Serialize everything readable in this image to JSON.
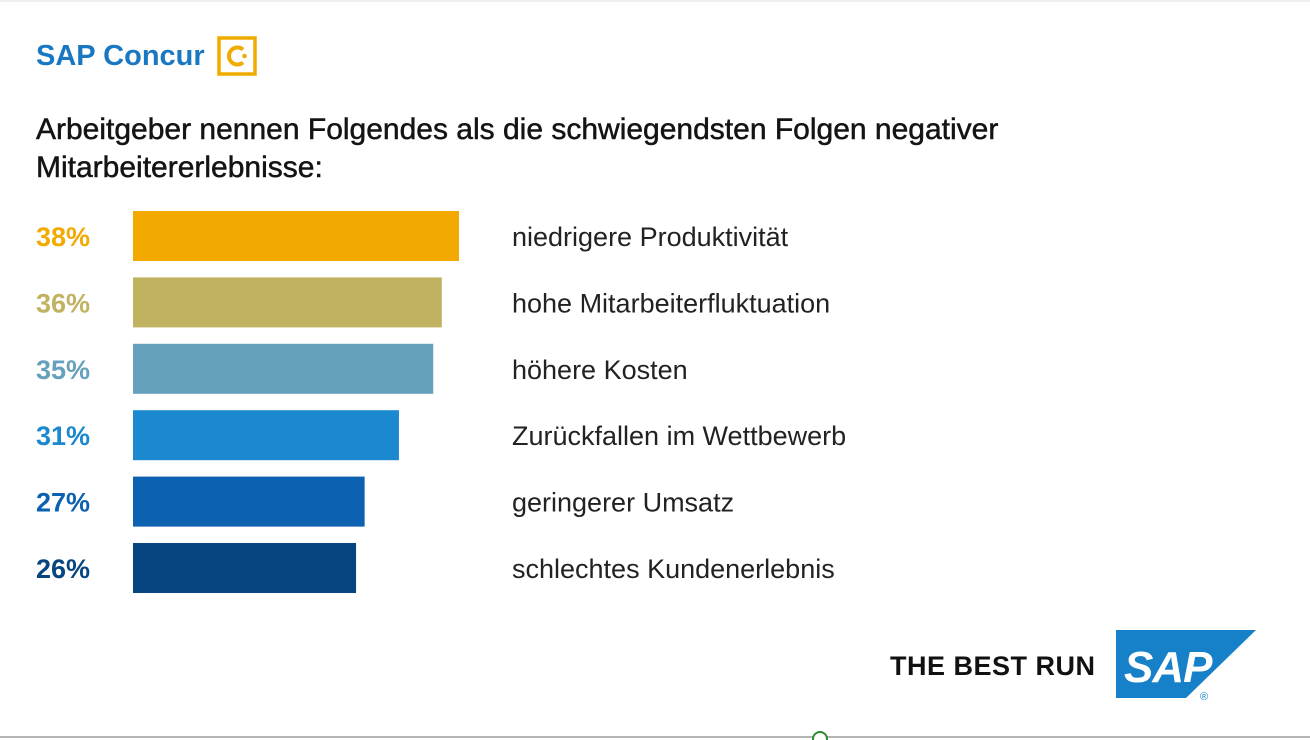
{
  "brand": {
    "name": "SAP Concur",
    "icon": "concur-c-icon",
    "name_color": "#1a78c2",
    "icon_color": "#f0ab00"
  },
  "title": "Arbeitgeber nennen Folgendes als die schwiegendsten Folgen negativer Mitarbeitererlebnisse:",
  "chart_data": {
    "type": "bar",
    "orientation": "horizontal",
    "categories": [
      "niedrigere Produktivität",
      "hohe Mitarbeiterfluktuation",
      "höhere Kosten",
      "Zurückfallen im Wettbewerb",
      "geringerer Umsatz",
      "schlechtes Kundenerlebnis"
    ],
    "values": [
      38,
      36,
      35,
      31,
      27,
      26
    ],
    "value_labels": [
      "38%",
      "36%",
      "35%",
      "31%",
      "27%",
      "26%"
    ],
    "unit": "%",
    "colors": [
      "#f2a900",
      "#c1b262",
      "#65a0bd",
      "#1b88cf",
      "#0c62b0",
      "#06457f"
    ],
    "xlim": [
      0,
      40
    ],
    "grid": false,
    "legend": "none"
  },
  "footer": {
    "tagline": "THE BEST RUN",
    "logo_text": "SAP",
    "logo_icon": "sap-logo-icon",
    "logo_color": "#1680c8",
    "registered_mark": "®"
  }
}
